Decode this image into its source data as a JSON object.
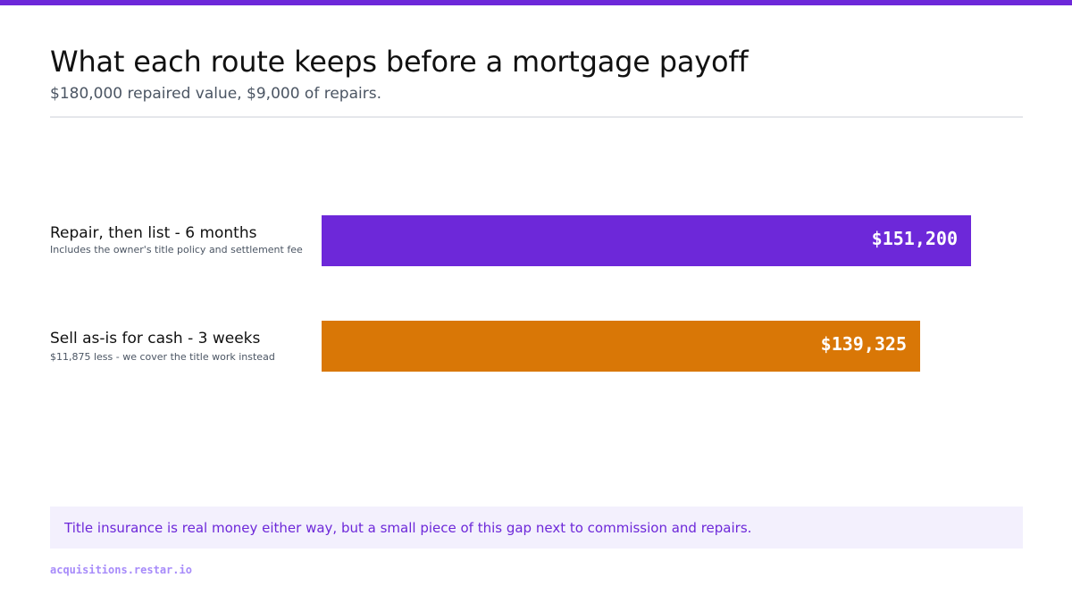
{
  "title": "What each route keeps before a mortgage payoff",
  "subtitle": "$180,000 repaired value, $9,000 of repairs.",
  "chart_data": {
    "type": "bar",
    "orientation": "horizontal",
    "title": "What each route keeps before a mortgage payoff",
    "subtitle": "$180,000 repaired value, $9,000 of repairs.",
    "categories": [
      "Repair, then list - 6 months",
      "Sell as-is for cash - 3 weeks"
    ],
    "category_notes": [
      "Includes the owner's title policy and settlement fee",
      "$11,875 less - we cover the title work instead"
    ],
    "values": [
      151200,
      139325
    ],
    "value_labels": [
      "$151,200",
      "$139,325"
    ],
    "colors": [
      "#6d28d9",
      "#d97706"
    ],
    "xlim": [
      0,
      163200
    ],
    "grid": false,
    "legend": "none"
  },
  "callout": "Title insurance is real money either way, but a small piece of this gap next to commission and repairs.",
  "footer": "acquisitions.restar.io",
  "colors": {
    "accent": "#6d28d9",
    "secondary": "#d97706",
    "callout_bg": "#f3f0fd",
    "footer_text": "#a78bfa"
  }
}
